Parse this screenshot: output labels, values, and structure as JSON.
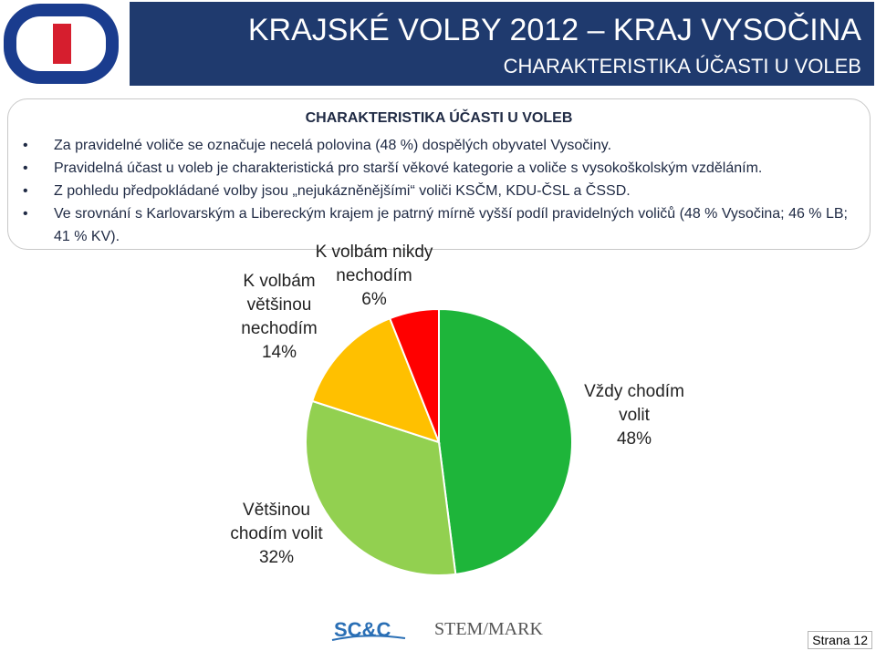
{
  "header": {
    "title": "KRAJSKÉ VOLBY 2012 – KRAJ VYSOČINA",
    "subtitle": "CHARAKTERISTIKA ÚČASTI U VOLEB"
  },
  "summary": {
    "title": "CHARAKTERISTIKA ÚČASTI U VOLEB",
    "bullets": [
      "Za pravidelné voliče se označuje necelá polovina (48 %) dospělých obyvatel Vysočiny.",
      "Pravidelná účast u voleb je charakteristická pro starší věkové kategorie a voliče s vysokoškolským vzděláním.",
      "Z pohledu předpokládané volby jsou „nejukázněnějšími“ voliči KSČM, KDU-ČSL a ČSSD.",
      "Ve srovnání s Karlovarským a Libereckým krajem je patrný mírně vyšší podíl pravidelných voličů (48 % Vysočina; 46 % LB; 41 % KV)."
    ]
  },
  "chart_data": {
    "type": "pie",
    "slices": [
      {
        "label": "Vždy chodím volit",
        "value": 48,
        "value_label": "48%",
        "color": "#1eb53a"
      },
      {
        "label": "Většinou chodím volit",
        "value": 32,
        "value_label": "32%",
        "color": "#92d050"
      },
      {
        "label": "K volbám většinou nechodím",
        "value": 14,
        "value_label": "14%",
        "color": "#ffc000"
      },
      {
        "label": "K volbám nikdy nechodím",
        "value": 6,
        "value_label": "6%",
        "color": "#ff0000"
      }
    ],
    "start_angle": "12 o'clock",
    "direction": "clockwise"
  },
  "footer": {
    "logo_left": "SC&C",
    "logo_right": "STEM/MARK",
    "page": "Strana 12"
  }
}
